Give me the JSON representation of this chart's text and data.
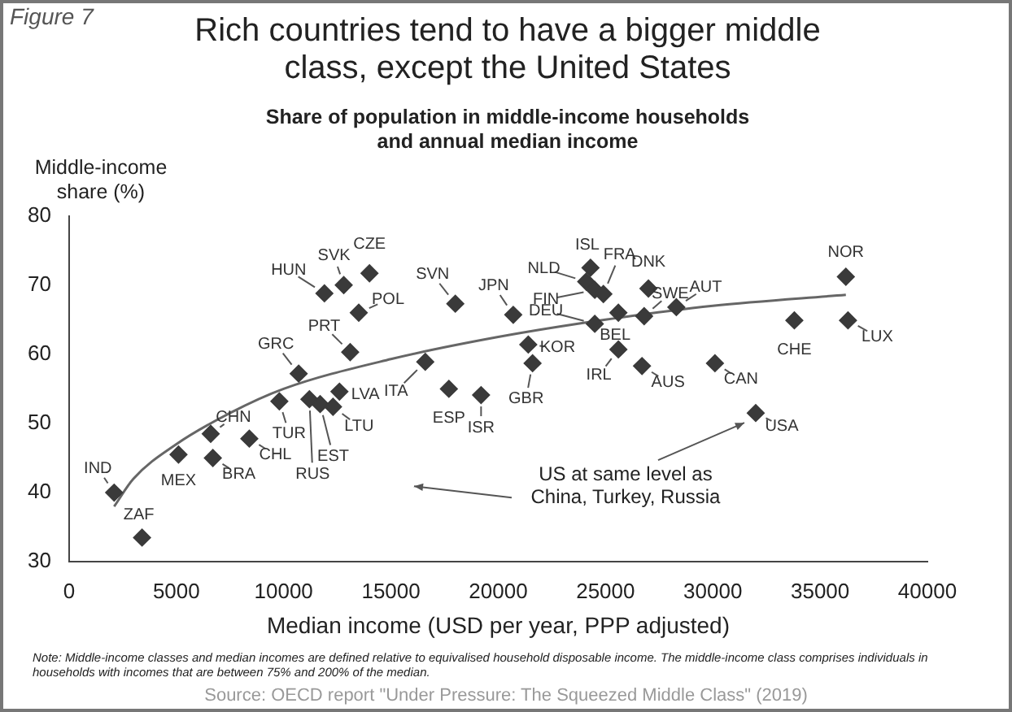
{
  "chart_data": {
    "type": "scatter",
    "title": "Rich countries tend to have a bigger middle class, except the United States",
    "subtitle": "Share of population in middle-income households and annual median income",
    "xlabel": "Median income (USD per year, PPP adjusted)",
    "ylabel": "Middle-income share (%)",
    "xlim": [
      0,
      40000
    ],
    "xticks": [
      0,
      5000,
      10000,
      15000,
      20000,
      25000,
      30000,
      35000,
      40000
    ],
    "ylim": [
      30,
      80
    ],
    "yticks": [
      30,
      40,
      50,
      60,
      70,
      80
    ],
    "grid": false,
    "legend": false,
    "marker": "diamond",
    "series": [
      {
        "type": "scatter",
        "color": "#3a3a3a",
        "x": [
          2100,
          3400,
          5100,
          6600,
          6700,
          8400,
          9800,
          10700,
          13100,
          13500,
          11900,
          12800,
          14000,
          11200,
          11700,
          12300,
          12600,
          16600,
          17700,
          19200,
          18000,
          20700,
          21400,
          21600,
          24500,
          24300,
          24100,
          24500,
          24900,
          25600,
          27000,
          26800,
          28300,
          25600,
          26700,
          30100,
          33800,
          36200,
          36300,
          32000
        ],
        "values": [
          40,
          33.5,
          45.5,
          48.5,
          45,
          47.8,
          53.2,
          57.2,
          60.3,
          66,
          68.8,
          70,
          71.7,
          53.5,
          52.8,
          52.4,
          54.6,
          58.9,
          55,
          54.1,
          67.3,
          65.7,
          61.4,
          58.7,
          64.4,
          72.5,
          70.5,
          69.3,
          68.7,
          66,
          69.5,
          65.5,
          66.8,
          60.7,
          58.3,
          58.7,
          64.9,
          71.2,
          64.9,
          51.5
        ]
      },
      {
        "type": "line",
        "color": "#666666",
        "line_style": "solid",
        "marker": "none",
        "x": [
          2100,
          3000,
          5000,
          7500,
          10000,
          15000,
          20000,
          25000,
          30000,
          36200
        ],
        "values": [
          38,
          42,
          47,
          51.5,
          55,
          59.3,
          62.5,
          65,
          67,
          68.6
        ]
      }
    ],
    "annotations": [
      "Figure 7",
      "Note: Middle-income classes and median incomes are defined relative to equivalised household disposable income. The middle-income class comprises individuals in households with incomes that are between 75% and 200% of the median.",
      "Source: OECD report \"Under Pressure: The Squeezed Middle Class\" (2019)",
      {
        "text": "IND",
        "x": 2100,
        "y": 40
      },
      {
        "text": "ZAF",
        "x": 3400,
        "y": 33.5
      },
      {
        "text": "MEX",
        "x": 5100,
        "y": 45.5
      },
      {
        "text": "CHN",
        "x": 6600,
        "y": 48.5
      },
      {
        "text": "BRA",
        "x": 6700,
        "y": 45
      },
      {
        "text": "CHL",
        "x": 8400,
        "y": 47.8
      },
      {
        "text": "TUR",
        "x": 9800,
        "y": 53.2
      },
      {
        "text": "GRC",
        "x": 10700,
        "y": 57.2
      },
      {
        "text": "PRT",
        "x": 13100,
        "y": 60.3
      },
      {
        "text": "POL",
        "x": 13500,
        "y": 66
      },
      {
        "text": "HUN",
        "x": 11900,
        "y": 68.8
      },
      {
        "text": "SVK",
        "x": 12800,
        "y": 70
      },
      {
        "text": "CZE",
        "x": 14000,
        "y": 71.7
      },
      {
        "text": "RUS",
        "x": 11200,
        "y": 53.5
      },
      {
        "text": "EST",
        "x": 11700,
        "y": 52.8
      },
      {
        "text": "LTU",
        "x": 12300,
        "y": 52.4
      },
      {
        "text": "LVA",
        "x": 12600,
        "y": 54.6
      },
      {
        "text": "ITA",
        "x": 16600,
        "y": 58.9
      },
      {
        "text": "ESP",
        "x": 17700,
        "y": 55
      },
      {
        "text": "ISR",
        "x": 19200,
        "y": 54.1
      },
      {
        "text": "SVN",
        "x": 18000,
        "y": 67.3
      },
      {
        "text": "JPN",
        "x": 20700,
        "y": 65.7
      },
      {
        "text": "KOR",
        "x": 21400,
        "y": 61.4
      },
      {
        "text": "GBR",
        "x": 21600,
        "y": 58.7
      },
      {
        "text": "DEU",
        "x": 24500,
        "y": 64.4
      },
      {
        "text": "ISL",
        "x": 24300,
        "y": 72.5
      },
      {
        "text": "NLD",
        "x": 24100,
        "y": 70.5
      },
      {
        "text": "FIN",
        "x": 24500,
        "y": 69.3
      },
      {
        "text": "FRA",
        "x": 24900,
        "y": 68.7
      },
      {
        "text": "BEL",
        "x": 25600,
        "y": 66
      },
      {
        "text": "DNK",
        "x": 27000,
        "y": 69.5
      },
      {
        "text": "SWE",
        "x": 26800,
        "y": 65.5
      },
      {
        "text": "AUT",
        "x": 28300,
        "y": 66.8
      },
      {
        "text": "IRL",
        "x": 25600,
        "y": 60.7
      },
      {
        "text": "AUS",
        "x": 26700,
        "y": 58.3
      },
      {
        "text": "CAN",
        "x": 30100,
        "y": 58.7
      },
      {
        "text": "CHE",
        "x": 33800,
        "y": 64.9
      },
      {
        "text": "NOR",
        "x": 36200,
        "y": 71.2
      },
      {
        "text": "LUX",
        "x": 36300,
        "y": 64.9
      },
      {
        "text": "USA",
        "x": 32000,
        "y": 51.5
      },
      "US at same level as China, Turkey, Russia"
    ]
  }
}
